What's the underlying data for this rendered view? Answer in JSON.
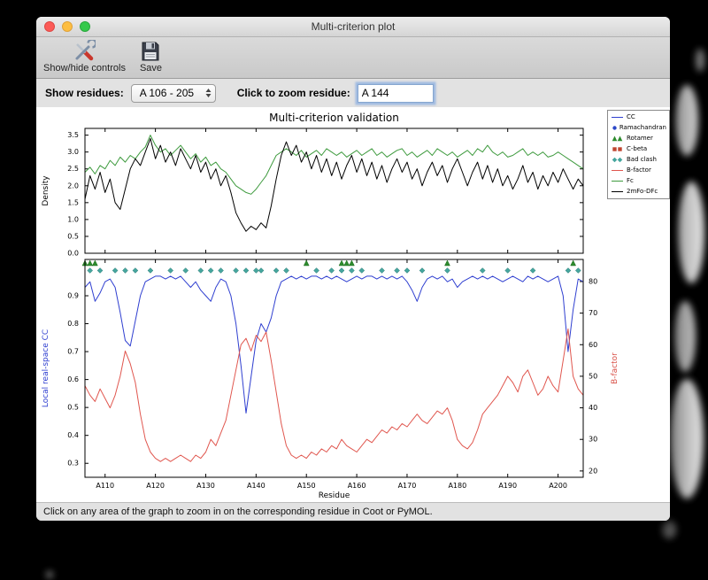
{
  "window": {
    "title": "Multi-criterion plot"
  },
  "toolbar": {
    "show_hide_label": "Show/hide controls",
    "save_label": "Save"
  },
  "controls": {
    "show_residues_label": "Show residues:",
    "residue_range_value": "A 106 - 205",
    "zoom_residue_label": "Click to zoom residue:",
    "zoom_residue_value": "A 144"
  },
  "status": {
    "hint": "Click on any area of the graph to zoom in on the corresponding residue in Coot or PyMOL."
  },
  "legend": {
    "items": [
      {
        "label": "CC",
        "type": "line",
        "color": "#2f3fd0"
      },
      {
        "label": "Ramachandran",
        "type": "circle",
        "color": "#2c48c8"
      },
      {
        "label": "Rotamer",
        "type": "triangle",
        "color": "#2e8b2e"
      },
      {
        "label": "C-beta",
        "type": "square",
        "color": "#c0452f"
      },
      {
        "label": "Bad clash",
        "type": "diamond",
        "color": "#46a69e"
      },
      {
        "label": "B-factor",
        "type": "line",
        "color": "#e0564e"
      },
      {
        "label": "Fc",
        "type": "line",
        "color": "#3f9b3f"
      },
      {
        "label": "2mFo-DFc",
        "type": "line",
        "color": "#000000"
      }
    ]
  },
  "chart_data": [
    {
      "type": "line",
      "title": "Multi-criterion validation",
      "ylabel": "Density",
      "ylim": [
        0,
        3.7
      ],
      "yticks": [
        0.0,
        0.5,
        1.0,
        1.5,
        2.0,
        2.5,
        3.0,
        3.5
      ],
      "x_range": [
        106,
        205
      ],
      "series": [
        {
          "name": "Fc",
          "color": "#3f9b3f",
          "values": [
            2.4,
            2.55,
            2.35,
            2.6,
            2.5,
            2.75,
            2.6,
            2.85,
            2.7,
            2.9,
            2.8,
            3.0,
            3.15,
            3.5,
            3.2,
            3.0,
            3.1,
            2.9,
            3.05,
            3.2,
            3.0,
            2.8,
            2.95,
            2.7,
            2.85,
            2.6,
            2.7,
            2.5,
            2.4,
            2.2,
            2.0,
            1.9,
            1.8,
            1.75,
            1.9,
            2.1,
            2.3,
            2.6,
            2.9,
            3.0,
            3.1,
            3.0,
            2.9,
            3.05,
            2.85,
            2.95,
            3.05,
            2.9,
            3.1,
            3.0,
            2.9,
            3.0,
            2.85,
            2.95,
            3.05,
            2.9,
            3.0,
            3.1,
            2.9,
            3.0,
            2.85,
            2.95,
            3.05,
            3.1,
            2.9,
            3.0,
            2.85,
            2.95,
            3.05,
            2.9,
            3.1,
            3.0,
            2.9,
            3.0,
            2.85,
            2.95,
            3.05,
            2.9,
            3.1,
            3.0,
            3.2,
            3.0,
            2.9,
            3.0,
            2.85,
            2.9,
            3.0,
            3.1,
            2.9,
            3.0,
            2.9,
            3.0,
            2.85,
            2.9,
            3.0,
            2.9,
            2.8,
            2.7,
            2.6,
            2.5
          ]
        },
        {
          "name": "2mFo-DFc",
          "color": "#000000",
          "values": [
            1.6,
            2.3,
            1.9,
            2.4,
            1.8,
            2.2,
            1.5,
            1.3,
            1.9,
            2.5,
            2.8,
            2.6,
            3.0,
            3.4,
            2.8,
            3.2,
            2.7,
            3.0,
            2.6,
            3.1,
            2.8,
            2.5,
            2.9,
            2.4,
            2.7,
            2.2,
            2.5,
            2.0,
            2.3,
            1.8,
            1.2,
            0.9,
            0.65,
            0.8,
            0.7,
            0.9,
            0.75,
            1.4,
            2.2,
            2.9,
            3.3,
            2.9,
            3.2,
            2.7,
            3.0,
            2.5,
            2.9,
            2.4,
            2.8,
            2.3,
            2.7,
            2.2,
            2.6,
            2.9,
            2.4,
            2.8,
            2.3,
            2.7,
            2.2,
            2.6,
            2.1,
            2.5,
            2.8,
            2.4,
            2.7,
            2.2,
            2.5,
            2.0,
            2.4,
            2.7,
            2.3,
            2.6,
            2.1,
            2.5,
            2.8,
            2.4,
            2.0,
            2.4,
            2.7,
            2.2,
            2.6,
            2.1,
            2.5,
            2.0,
            2.3,
            1.9,
            2.2,
            2.6,
            2.1,
            2.4,
            1.9,
            2.3,
            2.0,
            2.4,
            2.1,
            2.5,
            2.2,
            1.9,
            2.2,
            2.0
          ]
        }
      ]
    },
    {
      "type": "line",
      "xlabel": "Residue",
      "x_range": [
        106,
        205
      ],
      "xticks": [
        110,
        120,
        130,
        140,
        150,
        160,
        170,
        180,
        190,
        200
      ],
      "xtick_labels": [
        "A110",
        "A120",
        "A130",
        "A140",
        "A150",
        "A160",
        "A170",
        "A180",
        "A190",
        "A200"
      ],
      "left_axis": {
        "label": "Local real-space CC",
        "color": "#2f3fd0",
        "lim": [
          0.25,
          1.03
        ],
        "ticks": [
          0.3,
          0.4,
          0.5,
          0.6,
          0.7,
          0.8,
          0.9
        ]
      },
      "right_axis": {
        "label": "B-factor",
        "color": "#d9534a",
        "lim": [
          18,
          87
        ],
        "ticks": [
          20,
          30,
          40,
          50,
          60,
          70,
          80
        ]
      },
      "series": [
        {
          "name": "CC",
          "axis": "left",
          "color": "#2f3fd0",
          "values": [
            0.93,
            0.95,
            0.88,
            0.91,
            0.95,
            0.96,
            0.93,
            0.84,
            0.74,
            0.72,
            0.81,
            0.9,
            0.95,
            0.96,
            0.97,
            0.97,
            0.96,
            0.97,
            0.96,
            0.97,
            0.95,
            0.93,
            0.95,
            0.92,
            0.9,
            0.88,
            0.93,
            0.96,
            0.95,
            0.9,
            0.8,
            0.65,
            0.48,
            0.61,
            0.74,
            0.8,
            0.77,
            0.82,
            0.9,
            0.95,
            0.96,
            0.97,
            0.96,
            0.97,
            0.96,
            0.97,
            0.97,
            0.96,
            0.97,
            0.96,
            0.97,
            0.96,
            0.95,
            0.96,
            0.97,
            0.96,
            0.97,
            0.97,
            0.96,
            0.97,
            0.96,
            0.97,
            0.96,
            0.97,
            0.95,
            0.92,
            0.88,
            0.93,
            0.96,
            0.97,
            0.96,
            0.97,
            0.95,
            0.96,
            0.93,
            0.95,
            0.96,
            0.97,
            0.96,
            0.97,
            0.96,
            0.97,
            0.96,
            0.95,
            0.96,
            0.97,
            0.96,
            0.95,
            0.97,
            0.96,
            0.97,
            0.96,
            0.95,
            0.96,
            0.97,
            0.9,
            0.7,
            0.85,
            0.96,
            0.95
          ]
        },
        {
          "name": "B-factor",
          "axis": "right",
          "color": "#e0564e",
          "values": [
            47,
            44,
            42,
            46,
            43,
            40,
            44,
            50,
            58,
            54,
            48,
            38,
            30,
            26,
            24,
            23,
            24,
            23,
            24,
            25,
            24,
            23,
            25,
            24,
            26,
            30,
            28,
            32,
            36,
            44,
            52,
            60,
            62,
            58,
            63,
            61,
            64,
            55,
            45,
            35,
            28,
            25,
            24,
            25,
            24,
            26,
            25,
            27,
            26,
            28,
            27,
            30,
            28,
            27,
            26,
            28,
            30,
            29,
            31,
            33,
            32,
            34,
            33,
            35,
            34,
            36,
            38,
            36,
            35,
            37,
            39,
            38,
            40,
            36,
            30,
            28,
            27,
            29,
            33,
            38,
            40,
            42,
            44,
            47,
            50,
            48,
            45,
            50,
            52,
            48,
            44,
            46,
            50,
            47,
            45,
            55,
            65,
            50,
            46,
            44
          ]
        }
      ],
      "markers": [
        {
          "name": "Rotamer",
          "shape": "triangle",
          "color": "#2e8b2e",
          "residues": [
            106,
            107,
            108,
            150,
            157,
            158,
            159,
            178,
            203
          ]
        },
        {
          "name": "Bad clash",
          "shape": "diamond",
          "color": "#46a69e",
          "residues": [
            107,
            109,
            112,
            114,
            116,
            119,
            123,
            126,
            129,
            131,
            133,
            136,
            138,
            140,
            141,
            144,
            146,
            152,
            155,
            157,
            159,
            161,
            165,
            168,
            170,
            173,
            178,
            185,
            190,
            195,
            202,
            204
          ]
        },
        {
          "name": "Ramachandran",
          "shape": "circle",
          "color": "#2c48c8",
          "residues": []
        },
        {
          "name": "C-beta",
          "shape": "square",
          "color": "#c0452f",
          "residues": []
        }
      ]
    }
  ]
}
